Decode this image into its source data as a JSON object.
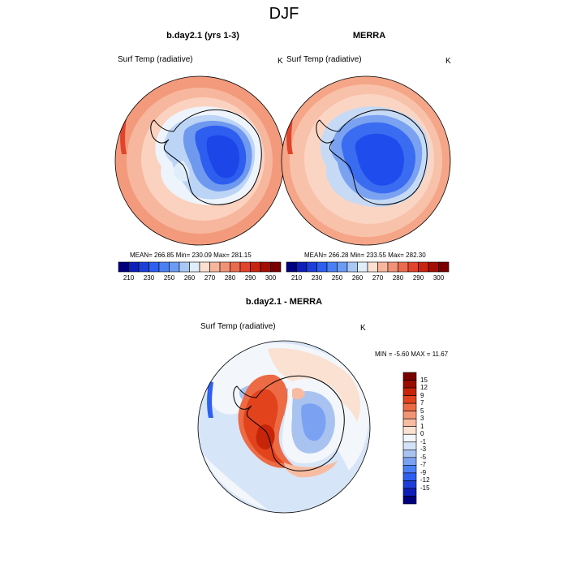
{
  "figure": {
    "title": "DJF"
  },
  "panels": [
    {
      "title": "b.day2.1 (yrs 1-3)",
      "variable": "Surf Temp (radiative)",
      "units": "K",
      "stats": "MEAN= 266.85  Min= 230.09  Max= 281.15"
    },
    {
      "title": "MERRA",
      "variable": "Surf Temp (radiative)",
      "units": "K",
      "stats": "MEAN= 266.28  Min= 233.55  Max= 282.30"
    },
    {
      "title": "b.day2.1 - MERRA",
      "variable": "Surf Temp (radiative)",
      "units": "K",
      "stats": "MIN =  -5.60 MAX =  11.67"
    }
  ],
  "colorbar_abs": {
    "colors": [
      "#00007f",
      "#0d1fb8",
      "#1d3fd8",
      "#2d5ff0",
      "#4a7ff5",
      "#6b9bf5",
      "#a9c8f5",
      "#dfeefa",
      "#fde0cf",
      "#f7b69b",
      "#f19277",
      "#ea6b4e",
      "#e2432b",
      "#c82410",
      "#a30e05",
      "#7a0000"
    ],
    "ticks": [
      "210",
      "230",
      "250",
      "260",
      "270",
      "280",
      "290",
      "300"
    ]
  },
  "colorbar_diff": {
    "colors": [
      "#00007f",
      "#0d1fb8",
      "#1d3fd8",
      "#2d5ff0",
      "#4a7ff5",
      "#7ba2f2",
      "#a9c3f0",
      "#d4e3f8",
      "#f3f6fa",
      "#fbe1d2",
      "#f7bca2",
      "#f39575",
      "#ec6b45",
      "#e2431d",
      "#c6250a",
      "#9a0c00",
      "#7a0000"
    ],
    "ticks": [
      "15",
      "12",
      "9",
      "7",
      "5",
      "3",
      "1",
      "0",
      "-1",
      "-3",
      "-5",
      "-7",
      "-9",
      "-12",
      "-15"
    ]
  }
}
